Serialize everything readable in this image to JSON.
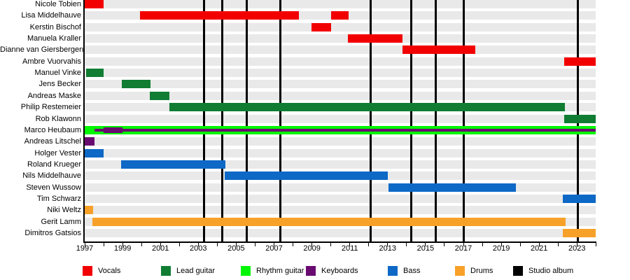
{
  "chart_data": {
    "type": "timeline",
    "description": "Band membership timeline (Gantt-style) with member rows, role-colored tenure bars and vertical studio-album markers",
    "x_axis": {
      "start_year": 1997,
      "end_year": 2024,
      "tick_interval": 1,
      "label_years": [
        "1997",
        "1999",
        "2001",
        "2003",
        "2005",
        "2007",
        "2009",
        "2011",
        "2013",
        "2015",
        "2017",
        "2019",
        "2021",
        "2023"
      ]
    },
    "rows": [
      {
        "name": "Nicole Tobien",
        "role": "vocals",
        "spans": [
          {
            "start": 1997.0,
            "end": 1998.0
          }
        ]
      },
      {
        "name": "Lisa Middelhauve",
        "role": "vocals",
        "spans": [
          {
            "start": 1999.92,
            "end": 2008.31
          },
          {
            "start": 2010.0,
            "end": 2010.95
          }
        ]
      },
      {
        "name": "Kerstin Bischof",
        "role": "vocals",
        "spans": [
          {
            "start": 2008.98,
            "end": 2010.0
          }
        ]
      },
      {
        "name": "Manuela Kraller",
        "role": "vocals",
        "spans": [
          {
            "start": 2010.9,
            "end": 2013.78
          }
        ]
      },
      {
        "name": "Dianne van Giersbergen",
        "role": "vocals",
        "spans": [
          {
            "start": 2013.78,
            "end": 2017.63
          }
        ]
      },
      {
        "name": "Ambre Vuorvahis",
        "role": "vocals",
        "spans": [
          {
            "start": 2022.32,
            "end": 2024.0
          }
        ]
      },
      {
        "name": "Manuel Vinke",
        "role": "lead_guitar",
        "spans": [
          {
            "start": 1997.07,
            "end": 1998.0
          }
        ]
      },
      {
        "name": "Jens Becker",
        "role": "lead_guitar",
        "spans": [
          {
            "start": 1998.96,
            "end": 2000.47
          }
        ]
      },
      {
        "name": "Andreas Maske",
        "role": "lead_guitar",
        "spans": [
          {
            "start": 2000.44,
            "end": 2001.47
          }
        ]
      },
      {
        "name": "Philip Restemeier",
        "role": "lead_guitar",
        "spans": [
          {
            "start": 2001.47,
            "end": 2022.36
          }
        ]
      },
      {
        "name": "Rob Klawonn",
        "role": "lead_guitar",
        "spans": [
          {
            "start": 2022.32,
            "end": 2024.0
          }
        ]
      },
      {
        "name": "Marco Heubaum",
        "role": "rhythm_guitar",
        "spans": [
          {
            "start": 1997.0,
            "end": 2024.0
          }
        ],
        "overlay": {
          "role": "keyboards",
          "thin": [
            {
              "start": 1997.5,
              "end": 2024.0
            }
          ],
          "thick": [
            {
              "start": 1998.0,
              "end": 1999.0
            }
          ]
        }
      },
      {
        "name": "Andreas Litschel",
        "role": "keyboards",
        "spans": [
          {
            "start": 1997.0,
            "end": 1997.5
          }
        ]
      },
      {
        "name": "Holger Vester",
        "role": "bass",
        "spans": [
          {
            "start": 1997.0,
            "end": 1998.0
          }
        ]
      },
      {
        "name": "Roland Krueger",
        "role": "bass",
        "spans": [
          {
            "start": 1998.92,
            "end": 2004.43
          }
        ]
      },
      {
        "name": "Nils Middelhauve",
        "role": "bass",
        "spans": [
          {
            "start": 2004.39,
            "end": 2013.0
          }
        ]
      },
      {
        "name": "Steven Wussow",
        "role": "bass",
        "spans": [
          {
            "start": 2013.04,
            "end": 2019.77
          }
        ]
      },
      {
        "name": "Tim Schwarz",
        "role": "bass",
        "spans": [
          {
            "start": 2022.25,
            "end": 2024.0
          }
        ]
      },
      {
        "name": "Niki Weltz",
        "role": "drums",
        "spans": [
          {
            "start": 1997.0,
            "end": 1997.44
          }
        ]
      },
      {
        "name": "Gerit Lamm",
        "role": "drums",
        "spans": [
          {
            "start": 1997.4,
            "end": 2022.4
          }
        ]
      },
      {
        "name": "Dimitros Gatsios",
        "role": "drums",
        "spans": [
          {
            "start": 2022.25,
            "end": 2024.0
          }
        ]
      }
    ],
    "album_markers": [
      2003.3,
      2004.25,
      2005.55,
      2007.35,
      2012.1,
      2014.25,
      2015.55,
      2017.0,
      2023.05
    ],
    "legend": [
      {
        "label": "Vocals",
        "role": "vocals"
      },
      {
        "label": "Lead guitar",
        "role": "lead_guitar"
      },
      {
        "label": "Rhythm guitar",
        "role": "rhythm_guitar"
      },
      {
        "label": "Keyboards",
        "role": "keyboards"
      },
      {
        "label": "Bass",
        "role": "bass"
      },
      {
        "label": "Drums",
        "role": "drums"
      },
      {
        "label": "Studio album",
        "role": "album"
      }
    ]
  },
  "colors": {
    "vocals": "#f20000",
    "lead_guitar": "#107d33",
    "rhythm_guitar": "#00f500",
    "keyboards": "#690a70",
    "bass": "#0d68c6",
    "drums": "#f7a129",
    "album": "#000000",
    "track": "#e9e9e9",
    "axis": "#000000"
  }
}
